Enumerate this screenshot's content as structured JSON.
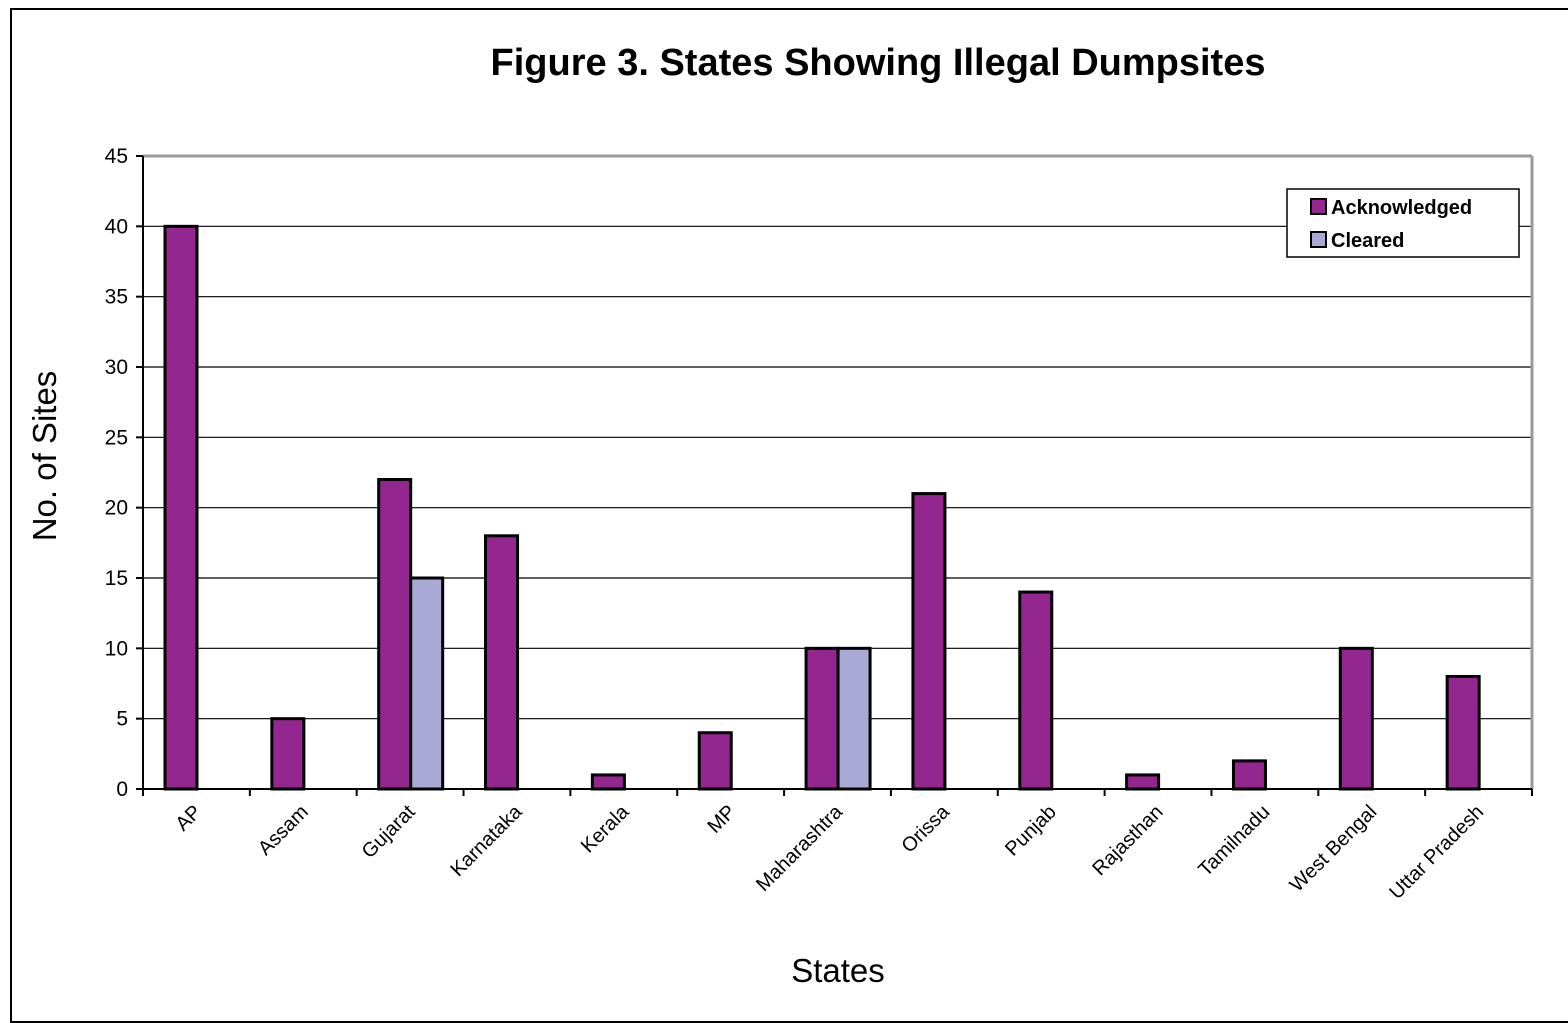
{
  "chart_data": {
    "type": "bar",
    "title": "Figure 3. States Showing Illegal Dumpsites",
    "xlabel": "States",
    "ylabel": "No. of Sites",
    "ylim": [
      0,
      45
    ],
    "yticks": [
      "0",
      "5",
      "10",
      "15",
      "20",
      "25",
      "30",
      "35",
      "40",
      "45"
    ],
    "grid": true,
    "legend_position": "top-right",
    "categories": [
      "AP",
      "Assam",
      "Gujarat",
      "Karnataka",
      "Kerala",
      "MP",
      "Maharashtra",
      "Orissa",
      "Punjab",
      "Rajasthan",
      "Tamilnadu",
      "West Bengal",
      "Uttar Pradesh"
    ],
    "series": [
      {
        "name": "Acknowledged",
        "color": "#93278F",
        "values": [
          40,
          5,
          22,
          18,
          1,
          4,
          10,
          21,
          14,
          1,
          2,
          10,
          8
        ]
      },
      {
        "name": "Cleared",
        "color": "#A9A9D6",
        "values": [
          0,
          0,
          15,
          0,
          0,
          0,
          10,
          0,
          0,
          0,
          0,
          0,
          0
        ]
      }
    ]
  }
}
